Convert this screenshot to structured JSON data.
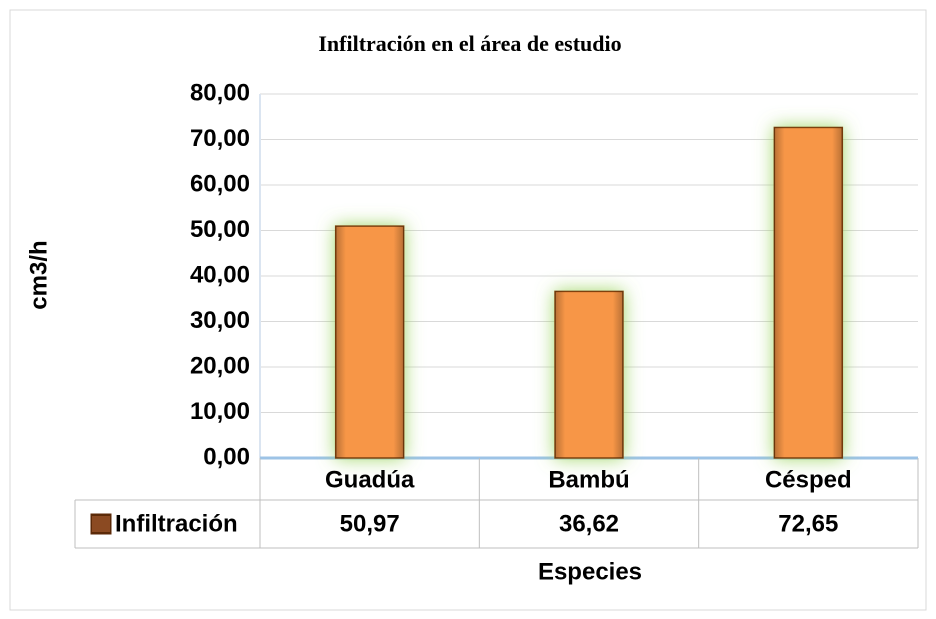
{
  "chart_data": {
    "type": "bar",
    "title": "Infiltración en el área de estudio",
    "categories": [
      "Guadúa",
      "Bambú",
      "Césped"
    ],
    "series": [
      {
        "name": "Infiltración",
        "color": "#f79646",
        "values": [
          50.97,
          36.62,
          72.65
        ],
        "value_labels": [
          "50,97",
          "36,62",
          "72,65"
        ]
      }
    ],
    "xlabel": "Especies",
    "ylabel": "cm3/h",
    "ylim": [
      0,
      80
    ],
    "yticks": [
      {
        "value": 0,
        "label": "0,00"
      },
      {
        "value": 10,
        "label": "10,00"
      },
      {
        "value": 20,
        "label": "20,00"
      },
      {
        "value": 30,
        "label": "30,00"
      },
      {
        "value": 40,
        "label": "40,00"
      },
      {
        "value": 50,
        "label": "50,00"
      },
      {
        "value": 60,
        "label": "60,00"
      },
      {
        "value": 70,
        "label": "70,00"
      },
      {
        "value": 80,
        "label": "80,00"
      }
    ],
    "grid": true,
    "data_table": true
  }
}
